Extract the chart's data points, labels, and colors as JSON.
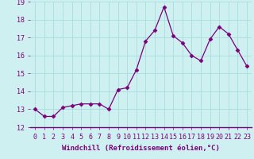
{
  "x": [
    0,
    1,
    2,
    3,
    4,
    5,
    6,
    7,
    8,
    9,
    10,
    11,
    12,
    13,
    14,
    15,
    16,
    17,
    18,
    19,
    20,
    21,
    22,
    23
  ],
  "y": [
    13.0,
    12.6,
    12.6,
    13.1,
    13.2,
    13.3,
    13.3,
    13.3,
    13.0,
    14.1,
    14.2,
    15.2,
    16.8,
    17.4,
    18.7,
    17.1,
    16.7,
    16.0,
    15.7,
    16.9,
    17.6,
    17.2,
    16.3,
    15.4
  ],
  "line_color": "#7B007B",
  "marker": "D",
  "marker_size": 2.5,
  "bg_color": "#cef0f0",
  "grid_color": "#aadddd",
  "xlabel": "Windchill (Refroidissement éolien,°C)",
  "xlabel_color": "#7B007B",
  "xlabel_fontsize": 6.5,
  "tick_color": "#7B007B",
  "tick_fontsize": 6,
  "ylim": [
    12,
    19
  ],
  "xlim": [
    -0.5,
    23.5
  ],
  "yticks": [
    12,
    13,
    14,
    15,
    16,
    17,
    18,
    19
  ],
  "xticks": [
    0,
    1,
    2,
    3,
    4,
    5,
    6,
    7,
    8,
    9,
    10,
    11,
    12,
    13,
    14,
    15,
    16,
    17,
    18,
    19,
    20,
    21,
    22,
    23
  ],
  "spine_color": "#7B007B",
  "bottom_spine_color": "#7B007B"
}
